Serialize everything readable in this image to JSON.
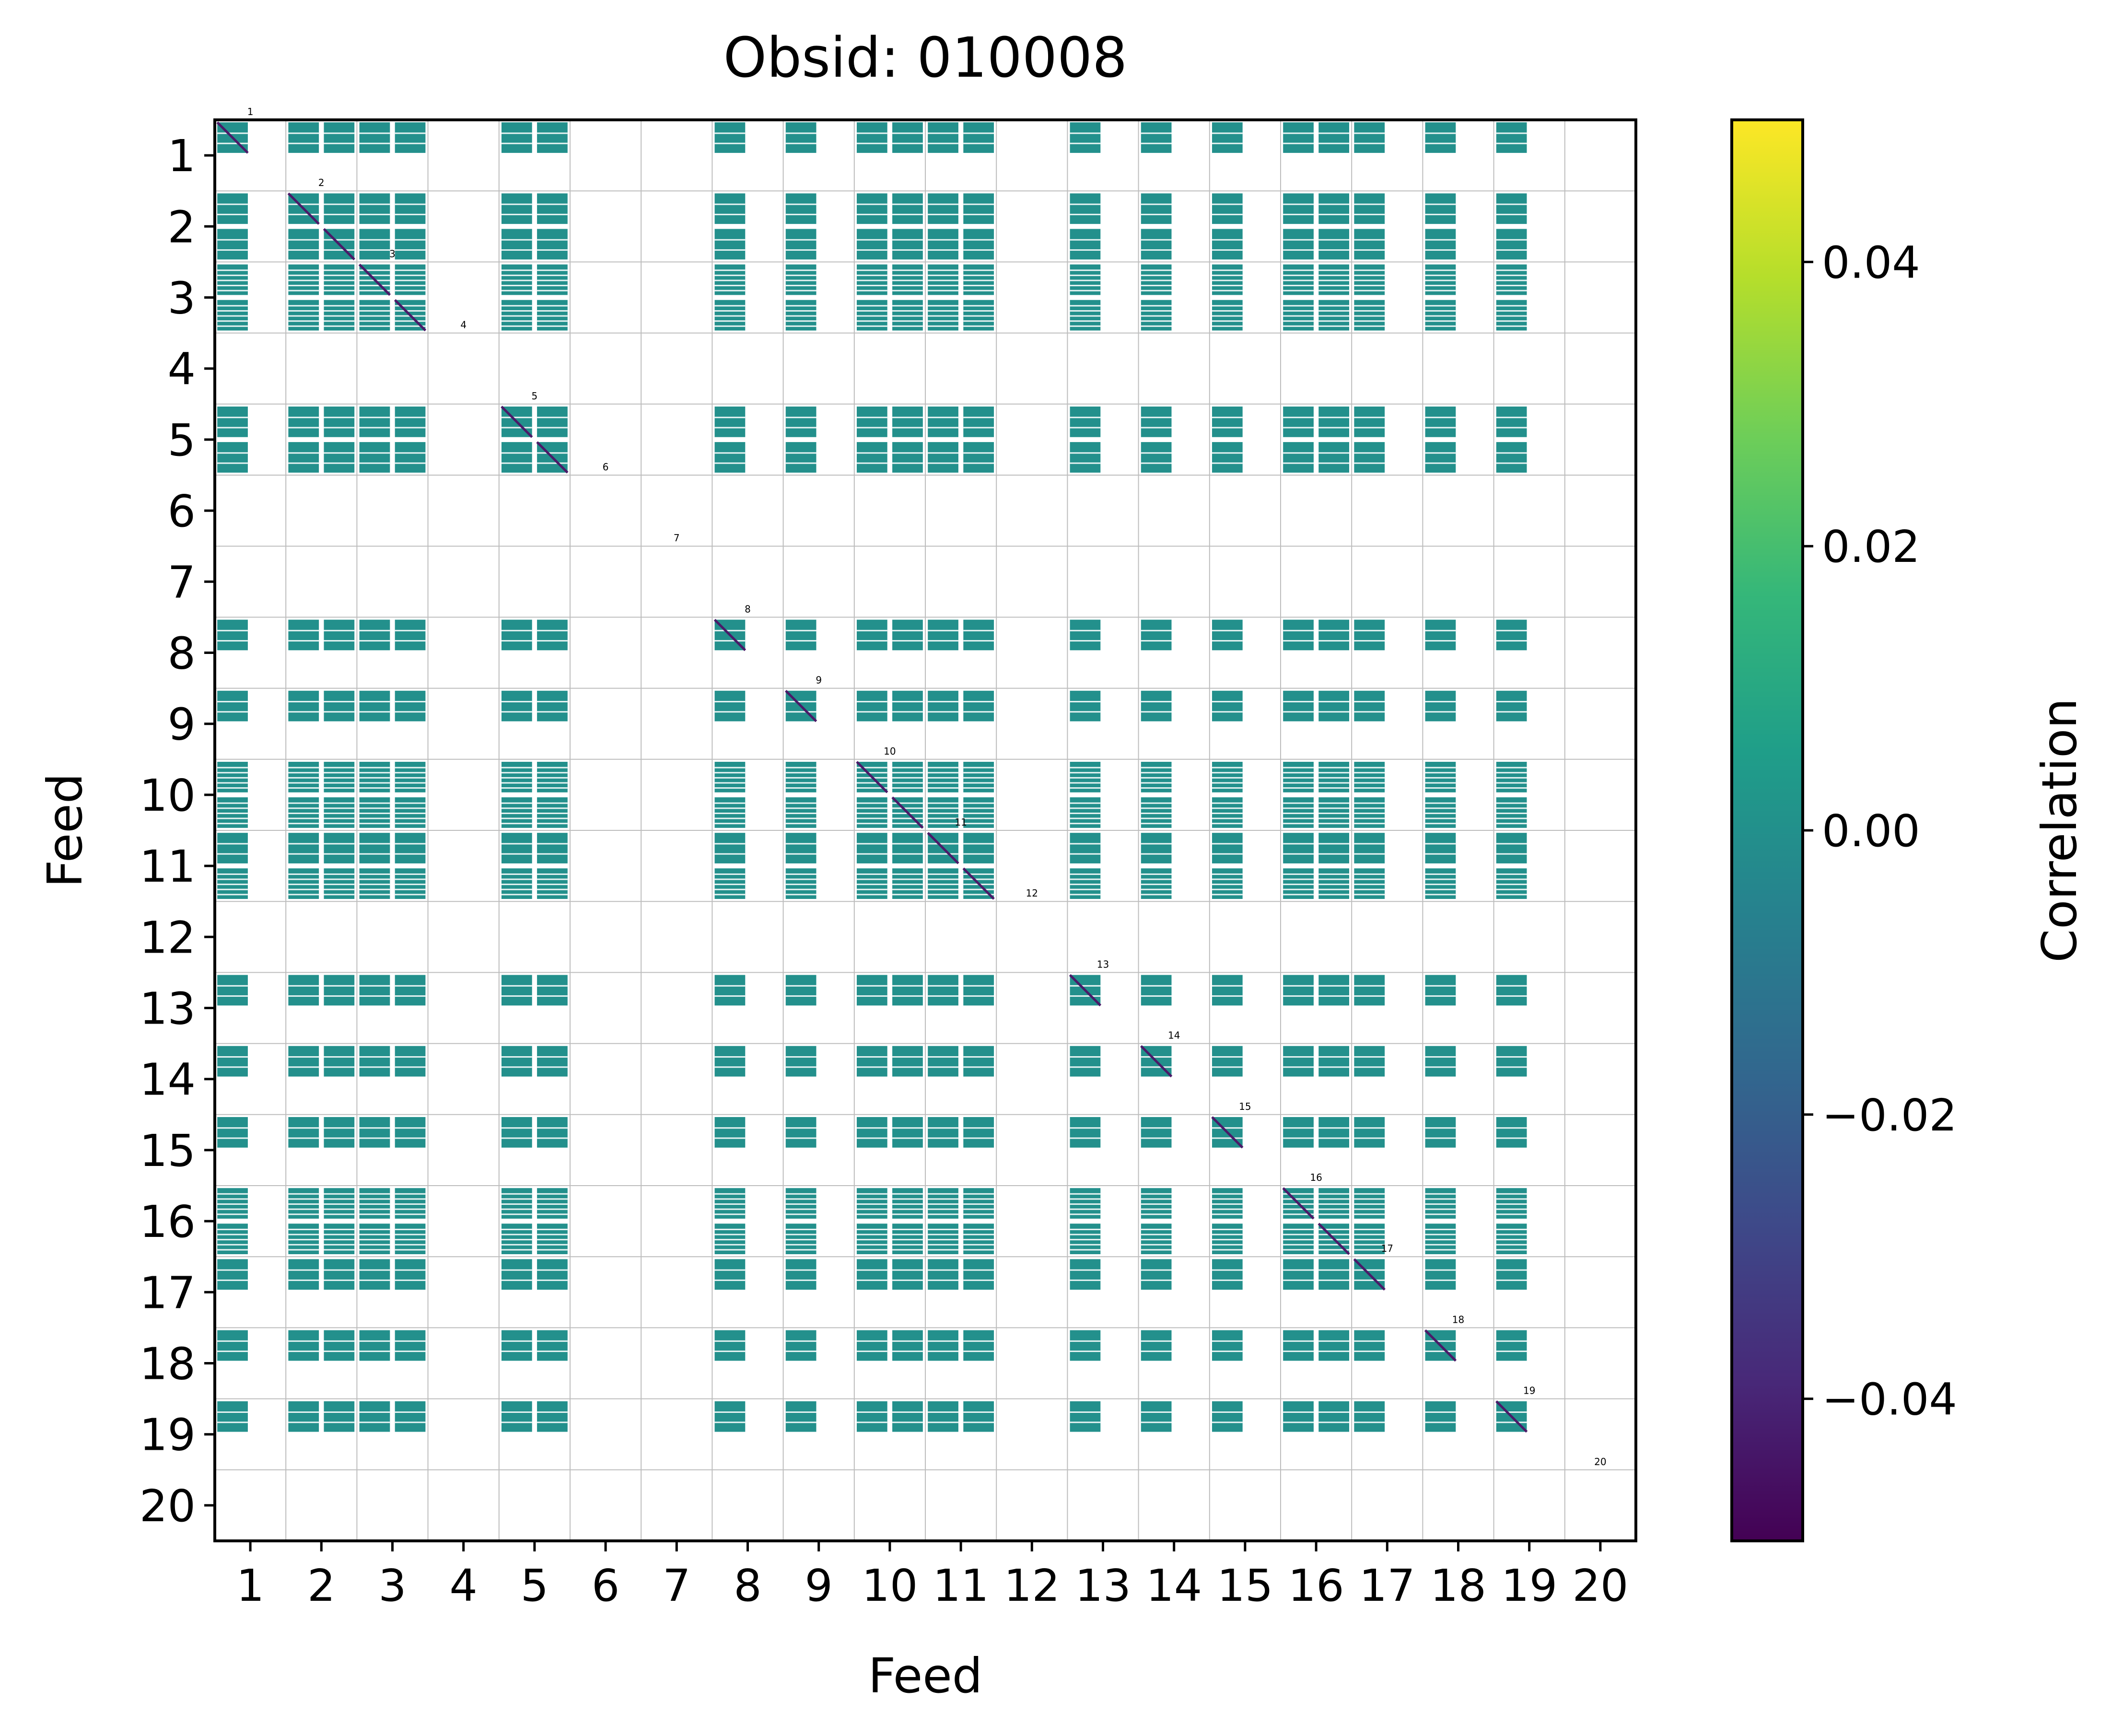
{
  "chart_data": {
    "type": "heatmap",
    "title": "Obsid: 010008",
    "xlabel": "Feed",
    "ylabel": "Feed",
    "feeds": [
      1,
      2,
      3,
      4,
      5,
      6,
      7,
      8,
      9,
      10,
      11,
      12,
      13,
      14,
      15,
      16,
      17,
      18,
      19,
      20
    ],
    "x_tick_labels": [
      "1",
      "2",
      "3",
      "4",
      "5",
      "6",
      "7",
      "8",
      "9",
      "10",
      "11",
      "12",
      "13",
      "14",
      "15",
      "16",
      "17",
      "18",
      "19",
      "20"
    ],
    "y_tick_labels": [
      "1",
      "2",
      "3",
      "4",
      "5",
      "6",
      "7",
      "8",
      "9",
      "10",
      "11",
      "12",
      "13",
      "14",
      "15",
      "16",
      "17",
      "18",
      "19",
      "20"
    ],
    "diagonal_labels": [
      "1",
      "2",
      "3",
      "4",
      "5",
      "6",
      "7",
      "8",
      "9",
      "10",
      "11",
      "12",
      "13",
      "14",
      "15",
      "16",
      "17",
      "18",
      "19",
      "20"
    ],
    "blocks_per_feed": 2,
    "block_columns_with_data": [
      1,
      3,
      4,
      5,
      6,
      9,
      10,
      15,
      17,
      19,
      20,
      21,
      22,
      25,
      27,
      29,
      31,
      32,
      33,
      35,
      37
    ],
    "block_rows_with_data": [
      1,
      3,
      4,
      5,
      6,
      9,
      10,
      15,
      17,
      19,
      20,
      21,
      22,
      25,
      27,
      29,
      31,
      32,
      33,
      35,
      37
    ],
    "partial_block_rows": [
      5,
      6,
      19,
      20,
      22,
      31,
      32
    ],
    "bulk_value": 0.0,
    "colorbar": {
      "label": "Correlation",
      "colormap": "viridis",
      "vmin": -0.05,
      "vmax": 0.05,
      "ticks": [
        -0.04,
        -0.02,
        0.0,
        0.02,
        0.04
      ],
      "tick_labels": [
        "−0.04",
        "−0.02",
        "0.00",
        "0.02",
        "0.04"
      ]
    },
    "colors": {
      "zero_teal": "#21908d",
      "diagonal_line": "#4a1a68",
      "grid": "#bdbdbd",
      "viridis_stops": [
        "#440154",
        "#482878",
        "#3e4989",
        "#31688e",
        "#26828e",
        "#1f9e89",
        "#35b779",
        "#6ece58",
        "#b5de2b",
        "#fde725"
      ]
    }
  }
}
